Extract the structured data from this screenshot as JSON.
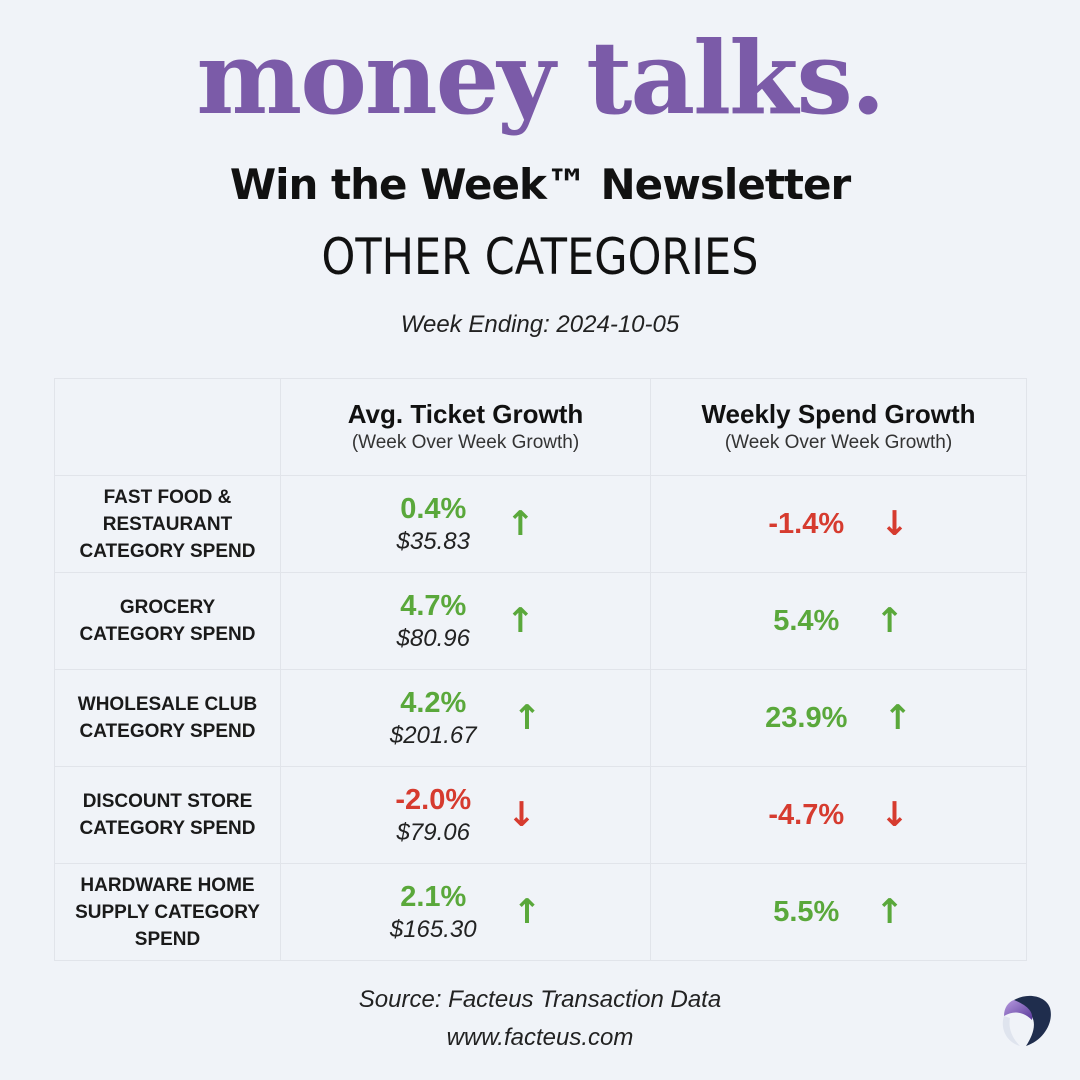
{
  "header": {
    "brand": "money talks.",
    "newsletter": "Win the Week™ Newsletter",
    "category": "OTHER CATEGORIES",
    "week_ending": "Week Ending:  2024-10-05"
  },
  "table": {
    "columns": [
      {
        "title": "Avg. Ticket Growth",
        "subtitle": "(Week Over Week Growth)"
      },
      {
        "title": "Weekly Spend Growth",
        "subtitle": "(Week Over Week Growth)"
      }
    ],
    "rows": [
      {
        "label": "FAST FOOD & RESTAURANT CATEGORY SPEND",
        "ticket_pct": "0.4%",
        "ticket_amt": "$35.83",
        "ticket_dir": "up",
        "spend_pct": "-1.4%",
        "spend_dir": "down"
      },
      {
        "label": "GROCERY CATEGORY SPEND",
        "ticket_pct": "4.7%",
        "ticket_amt": "$80.96",
        "ticket_dir": "up",
        "spend_pct": "5.4%",
        "spend_dir": "up"
      },
      {
        "label": "WHOLESALE CLUB CATEGORY SPEND",
        "ticket_pct": "4.2%",
        "ticket_amt": "$201.67",
        "ticket_dir": "up",
        "spend_pct": "23.9%",
        "spend_dir": "up"
      },
      {
        "label": "DISCOUNT STORE CATEGORY SPEND",
        "ticket_pct": "-2.0%",
        "ticket_amt": "$79.06",
        "ticket_dir": "down",
        "spend_pct": "-4.7%",
        "spend_dir": "down"
      },
      {
        "label": "HARDWARE HOME SUPPLY CATEGORY SPEND",
        "ticket_pct": "2.1%",
        "ticket_amt": "$165.30",
        "ticket_dir": "up",
        "spend_pct": "5.5%",
        "spend_dir": "up"
      }
    ]
  },
  "footer": {
    "source": "Source:  Facteus Transaction Data",
    "url": "www.facteus.com"
  },
  "colors": {
    "brand": "#7b5ba8",
    "up": "#5aa83b",
    "down": "#d63b2f",
    "background": "#f0f3f8"
  },
  "icons": {
    "up": "arrow-up-icon",
    "down": "arrow-down-icon",
    "logo": "facteus-logo-icon"
  }
}
